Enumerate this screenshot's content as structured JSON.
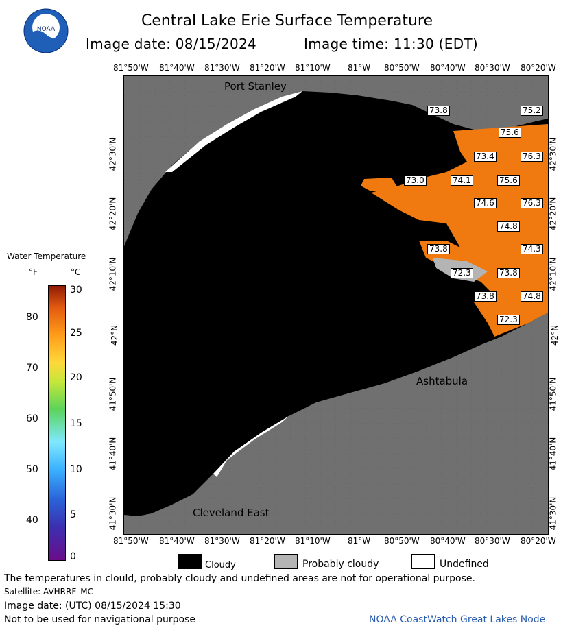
{
  "header": {
    "title": "Central Lake Erie Surface Temperature",
    "image_date": "Image date: 08/15/2024",
    "image_time": "Image time: 11:30 (EDT)",
    "logo_text": "NOAA"
  },
  "axes": {
    "longitude_ticks": [
      "81°50'W",
      "81°40'W",
      "81°30'W",
      "81°20'W",
      "81°10'W",
      "81°W",
      "80°50'W",
      "80°40'W",
      "80°30'W",
      "80°20'W"
    ],
    "latitude_ticks": [
      "42°30'N",
      "42°20'N",
      "42°10'N",
      "42°N",
      "41°50'N",
      "41°40'N",
      "41°30'N"
    ]
  },
  "places": {
    "port_stanley": "Port Stanley",
    "ashtabula": "Ashtabula",
    "cleveland_east": "Cleveland East"
  },
  "temperature_labels": [
    "73.8",
    "75.2",
    "75.6",
    "73.4",
    "76.3",
    "73.0",
    "74.1",
    "75.6",
    "74.6",
    "76.3",
    "74.8",
    "73.8",
    "74.3",
    "72.3",
    "73.8",
    "73.8",
    "74.8",
    "72.3"
  ],
  "legend": {
    "title": "Water Temperature",
    "unit_f": "°F",
    "unit_c": "°C",
    "f_ticks": [
      "80",
      "70",
      "60",
      "50",
      "40"
    ],
    "c_ticks": [
      "30",
      "25",
      "20",
      "15",
      "10",
      "5",
      "0"
    ],
    "colors": {
      "cloudy": "#000000",
      "probably_cloudy": "#b4b4b4",
      "undefined": "#ffffff",
      "land": "#707070",
      "warm_water": "#f07a10"
    }
  },
  "key": {
    "cloudy": "Cloudy",
    "probably_cloudy": "Probably cloudy",
    "undefined": "Undefined"
  },
  "footer": {
    "disclaimer": "The temperatures in clould, probably cloudy and undefined areas are not for operational purpose.",
    "satellite": "Satellite: AVHRRF_MC",
    "utc_date": "Image date: (UTC) 08/15/2024  15:30",
    "nav_warning": "Not to be used for navigational purpose",
    "credit": "NOAA CoastWatch Great Lakes Node"
  }
}
